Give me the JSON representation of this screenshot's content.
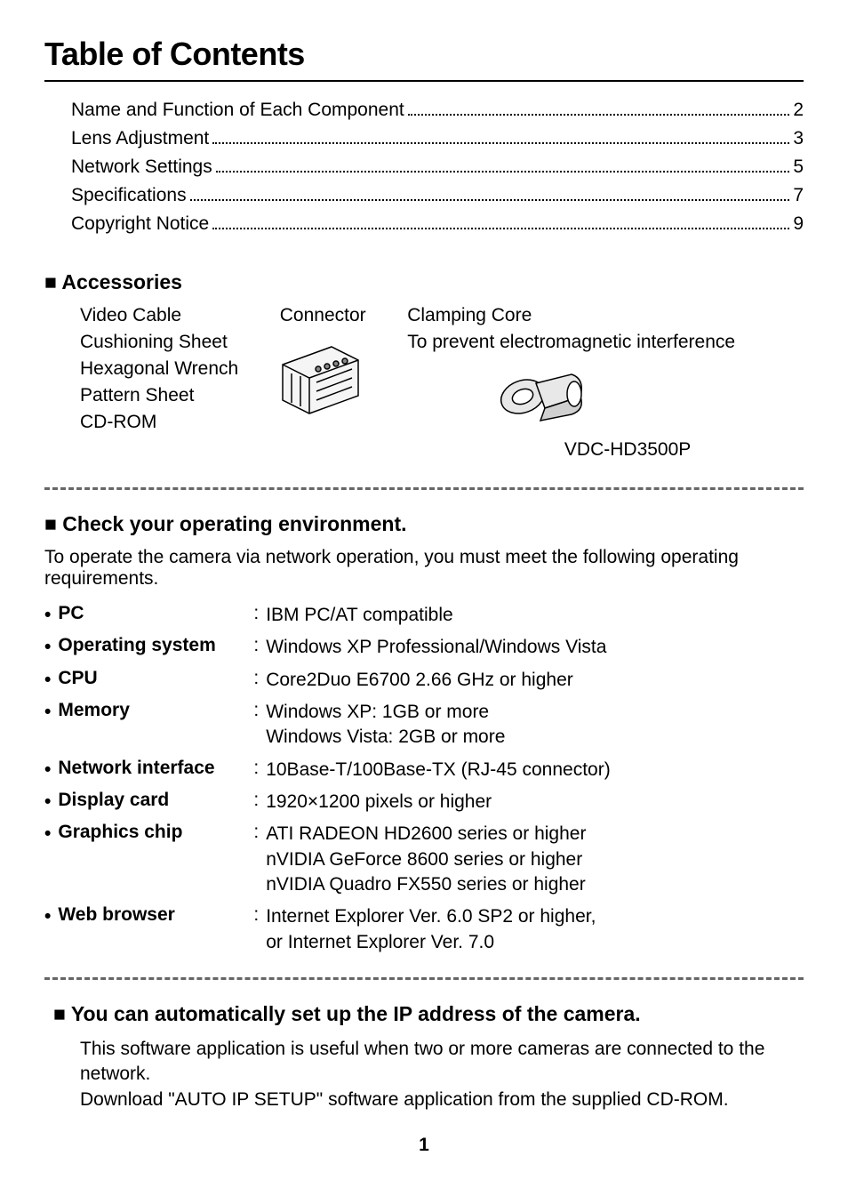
{
  "title": "Table of Contents",
  "toc": [
    {
      "label": "Name and Function of Each Component",
      "page": "2"
    },
    {
      "label": "Lens Adjustment",
      "page": "3"
    },
    {
      "label": "Network Settings",
      "page": "5"
    },
    {
      "label": "Specifications",
      "page": "7"
    },
    {
      "label": "Copyright Notice",
      "page": "9"
    }
  ],
  "accessories_header": "■ Accessories",
  "accessories_list": [
    "Video Cable",
    "Cushioning Sheet",
    "Hexagonal Wrench",
    "Pattern Sheet",
    "CD-ROM"
  ],
  "connector_label": "Connector",
  "clamping_label": "Clamping Core",
  "clamping_desc": "To prevent electromagnetic interference",
  "model_number": "VDC-HD3500P",
  "check_env_header": "■ Check your operating environment.",
  "check_env_intro": "To operate the camera via network operation, you must meet the following operating requirements.",
  "requirements": [
    {
      "label": "PC",
      "value": "IBM PC/AT compatible"
    },
    {
      "label": "Operating system",
      "value": "Windows XP Professional/Windows Vista"
    },
    {
      "label": "CPU",
      "value": "Core2Duo E6700 2.66 GHz or higher"
    },
    {
      "label": "Memory",
      "value": "Windows XP: 1GB or more\nWindows Vista: 2GB or more"
    },
    {
      "label": "Network interface",
      "value": "10Base-T/100Base-TX (RJ-45 connector)"
    },
    {
      "label": "Display card",
      "value": "1920×1200 pixels or higher"
    },
    {
      "label": "Graphics chip",
      "value": "ATI RADEON HD2600 series or higher\nnVIDIA GeForce 8600 series or higher\nnVIDIA Quadro FX550 series or higher"
    },
    {
      "label": "Web browser",
      "value": "Internet Explorer Ver. 6.0 SP2 or higher,\nor Internet Explorer Ver. 7.0"
    }
  ],
  "ip_setup_header": "■ You can automatically set up the IP address of the camera.",
  "ip_setup_text1": "This software application is useful when two or more cameras are connected to the network.",
  "ip_setup_text2": "Download \"AUTO IP SETUP\" software application from the supplied CD-ROM.",
  "page_number": "1",
  "colors": {
    "text": "#000000",
    "bg": "#ffffff",
    "dashed": "#666666"
  }
}
